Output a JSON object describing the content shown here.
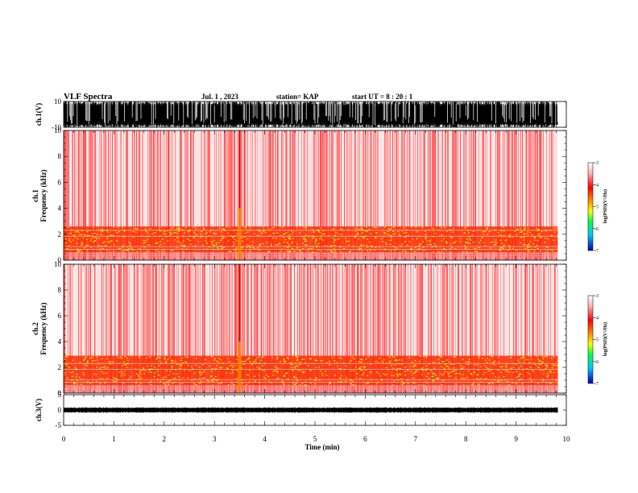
{
  "header": {
    "title": "VLF Spectra",
    "date": "Jul.  1  , 2023",
    "station": "station= KAP",
    "start_ut": "start  UT  =   8  : 20 : 1"
  },
  "chart_data": {
    "type": "spectrogram",
    "x_axis": {
      "label": "Time  (min)",
      "range": [
        0,
        10
      ],
      "ticks": [
        "0",
        "1",
        "2",
        "3",
        "4",
        "5",
        "6",
        "7",
        "8",
        "9",
        "10"
      ],
      "data_end": 9.83
    },
    "panels": [
      {
        "name": "ch1-waveform",
        "type": "waveform",
        "ylabel": "ch.1(V)",
        "ylim": [
          -10,
          10
        ],
        "ytick_labels": [
          "10",
          "-10"
        ]
      },
      {
        "name": "ch1-spectrogram",
        "type": "heatmap",
        "ylabel_top": "ch.1",
        "ylabel": "Frequency  (kHz)",
        "ylim": [
          0,
          10
        ],
        "ytick_labels": [
          "0",
          "2",
          "4",
          "6",
          "8",
          "10"
        ],
        "strong_band_khz": [
          0.6,
          2.6
        ],
        "feature_time_min": 3.5
      },
      {
        "name": "ch2-spectrogram",
        "type": "heatmap",
        "ylabel_top": "ch.2",
        "ylabel": "Frequency  (kHz)",
        "ylim": [
          0,
          10
        ],
        "ytick_labels": [
          "0",
          "2",
          "4",
          "6",
          "8",
          "10"
        ],
        "strong_band_khz": [
          0.6,
          2.9
        ],
        "feature_time_min": 3.5
      },
      {
        "name": "ch3-waveform",
        "type": "waveform",
        "ylabel": "ch.3(V)",
        "ylim": [
          -5,
          5
        ],
        "ytick_labels": [
          "5",
          "0",
          "-5"
        ]
      }
    ],
    "colorbar": {
      "label": "log(PSD)(V²/Hz)",
      "ticks": [
        "-3",
        "-4",
        "-5",
        "-6",
        "-7"
      ],
      "range": [
        -7,
        -3
      ],
      "colors": [
        "#0000b4",
        "#00c8ff",
        "#00ff40",
        "#ffff00",
        "#ff8000",
        "#ff0000",
        "#ffb4b4",
        "#ffffff"
      ]
    }
  }
}
